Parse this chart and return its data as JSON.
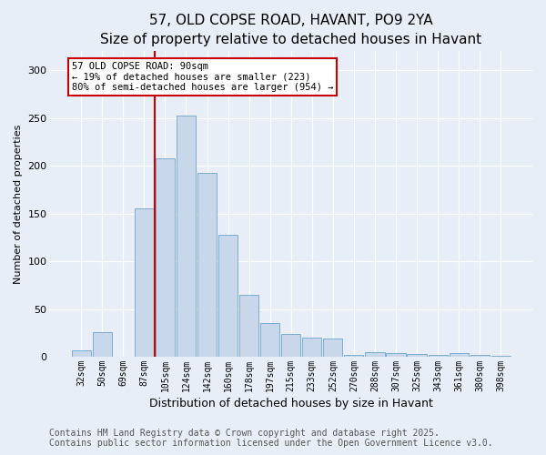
{
  "title": "57, OLD COPSE ROAD, HAVANT, PO9 2YA",
  "subtitle": "Size of property relative to detached houses in Havant",
  "xlabel": "Distribution of detached houses by size in Havant",
  "ylabel": "Number of detached properties",
  "bar_labels": [
    "32sqm",
    "50sqm",
    "69sqm",
    "87sqm",
    "105sqm",
    "124sqm",
    "142sqm",
    "160sqm",
    "178sqm",
    "197sqm",
    "215sqm",
    "233sqm",
    "252sqm",
    "270sqm",
    "288sqm",
    "307sqm",
    "325sqm",
    "343sqm",
    "361sqm",
    "380sqm",
    "398sqm"
  ],
  "bar_values": [
    7,
    26,
    0,
    155,
    208,
    253,
    193,
    128,
    65,
    35,
    24,
    20,
    19,
    2,
    5,
    4,
    3,
    2,
    4,
    2,
    1
  ],
  "bar_color": "#c8d8ea",
  "bar_edge_color": "#7aadd4",
  "vline_color": "#cc0000",
  "vline_x": 3.5,
  "annotation_text": "57 OLD COPSE ROAD: 90sqm\n← 19% of detached houses are smaller (223)\n80% of semi-detached houses are larger (954) →",
  "annotation_box_facecolor": "white",
  "annotation_box_edgecolor": "#cc0000",
  "ylim": [
    0,
    320
  ],
  "yticks": [
    0,
    50,
    100,
    150,
    200,
    250,
    300
  ],
  "footer_line1": "Contains HM Land Registry data © Crown copyright and database right 2025.",
  "footer_line2": "Contains public sector information licensed under the Open Government Licence v3.0.",
  "bg_color": "#e8eef8",
  "title_fontsize": 11,
  "subtitle_fontsize": 9.5,
  "axis_fontsize": 8,
  "tick_fontsize": 7,
  "footer_fontsize": 7
}
